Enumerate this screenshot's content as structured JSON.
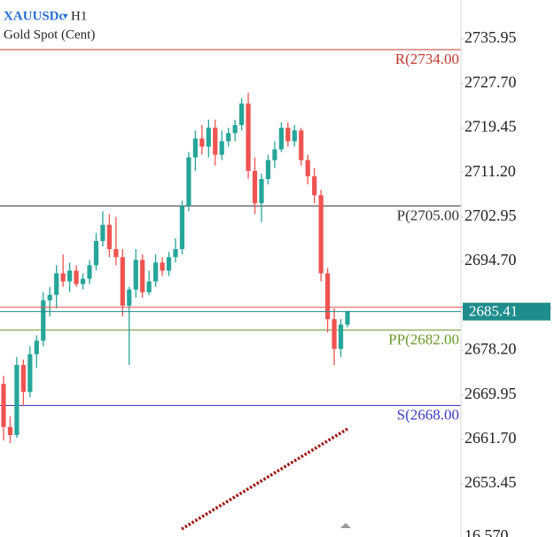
{
  "chart_data": {
    "type": "candlestick",
    "symbol": "XAUUSDc",
    "dropdown": "▾",
    "timeframe": "H1",
    "subtitle": "Gold Spot (Cent)",
    "up_color": "#26a69a",
    "down_color": "#ef5350",
    "open": [
      2672.0,
      2664.0,
      2662.5,
      2675.5,
      2670.5,
      2677.5,
      2680.0,
      2687.5,
      2688.5,
      2692.5,
      2691.0,
      2693.0,
      2690.5,
      2691.5,
      2694.0,
      2698.5,
      2701.5,
      2697.0,
      2695.5,
      2686.5,
      2689.5,
      2695.0,
      2689.0,
      2691.0,
      2694.5,
      2693.0,
      2695.5,
      2697.0,
      2705.0,
      2714.0,
      2717.5,
      2716.0,
      2719.5,
      2714.5,
      2717.0,
      2718.5,
      2720.0,
      2724.0,
      2711.5,
      2705.5,
      2710.0,
      2713.5,
      2715.5,
      2719.5,
      2717.0,
      2719.0,
      2713.5,
      2710.5,
      2707.0,
      2692.5,
      2684.0,
      2678.5,
      2683.0
    ],
    "high": [
      2673.5,
      2666.0,
      2677.0,
      2676.5,
      2679.0,
      2681.0,
      2689.0,
      2690.0,
      2694.0,
      2696.0,
      2694.5,
      2694.0,
      2692.5,
      2695.0,
      2700.0,
      2704.0,
      2703.5,
      2703.0,
      2697.0,
      2690.0,
      2697.0,
      2696.0,
      2693.0,
      2696.0,
      2695.5,
      2696.5,
      2699.0,
      2706.0,
      2715.0,
      2719.0,
      2720.0,
      2721.0,
      2721.0,
      2719.0,
      2719.5,
      2721.0,
      2725.0,
      2726.0,
      2714.0,
      2711.0,
      2714.5,
      2717.0,
      2720.5,
      2720.5,
      2720.0,
      2719.5,
      2714.5,
      2712.0,
      2708.0,
      2693.5,
      2686.0,
      2684.0,
      2685.6
    ],
    "low": [
      2661.5,
      2661.0,
      2662.0,
      2668.0,
      2669.5,
      2675.0,
      2679.0,
      2684.5,
      2686.0,
      2690.0,
      2689.0,
      2690.0,
      2689.5,
      2690.5,
      2693.0,
      2697.5,
      2695.5,
      2694.0,
      2684.5,
      2675.5,
      2688.0,
      2688.0,
      2688.5,
      2690.0,
      2692.0,
      2692.0,
      2694.5,
      2696.0,
      2704.0,
      2711.5,
      2714.5,
      2714.0,
      2712.5,
      2713.5,
      2716.0,
      2717.0,
      2719.0,
      2710.0,
      2703.5,
      2702.0,
      2709.0,
      2712.0,
      2715.0,
      2716.0,
      2716.0,
      2712.5,
      2709.0,
      2705.5,
      2691.0,
      2681.5,
      2675.5,
      2677.0,
      2682.5
    ],
    "close": [
      2664.0,
      2662.5,
      2675.5,
      2670.5,
      2677.5,
      2680.0,
      2687.5,
      2688.5,
      2692.5,
      2691.0,
      2693.0,
      2690.5,
      2691.5,
      2694.0,
      2698.5,
      2701.5,
      2697.0,
      2695.5,
      2686.5,
      2689.5,
      2695.0,
      2689.0,
      2691.0,
      2694.5,
      2693.0,
      2695.5,
      2697.0,
      2705.0,
      2714.0,
      2717.5,
      2716.0,
      2719.5,
      2714.5,
      2717.0,
      2718.5,
      2720.0,
      2724.0,
      2711.5,
      2705.5,
      2710.0,
      2713.5,
      2715.5,
      2719.5,
      2717.0,
      2719.0,
      2713.5,
      2710.5,
      2707.0,
      2692.5,
      2684.0,
      2678.5,
      2683.0,
      2685.41
    ],
    "price_color": "#1e8c8c",
    "ask_price": 2686.2,
    "ask_color": "#e05050",
    "levels": [
      {
        "label": "R(2734.00",
        "value": 2734.0,
        "color": "#c0392b"
      },
      {
        "label": "P(2705.00",
        "value": 2705.0,
        "color": "#333333"
      },
      {
        "label": "PP(2682.00",
        "value": 2682.0,
        "color": "#6a9a2a"
      },
      {
        "label": "S(2668.00",
        "value": 2668.0,
        "color": "#3a3ac0"
      }
    ],
    "ylim": [
      2643.6,
      2743.2
    ],
    "yticks": [
      2735.95,
      {
        "value": 2727.7,
        "label": "2727.70"
      },
      2719.45,
      {
        "value": 2711.2,
        "label": "2711.20"
      },
      2702.95,
      {
        "value": 2694.7,
        "label": "2694.70"
      },
      {
        "value": 2678.2,
        "label": "2678.20"
      },
      2669.95,
      {
        "value": 2661.7,
        "label": "2661.70"
      },
      2653.45
    ],
    "bottom_label": "16.570"
  }
}
